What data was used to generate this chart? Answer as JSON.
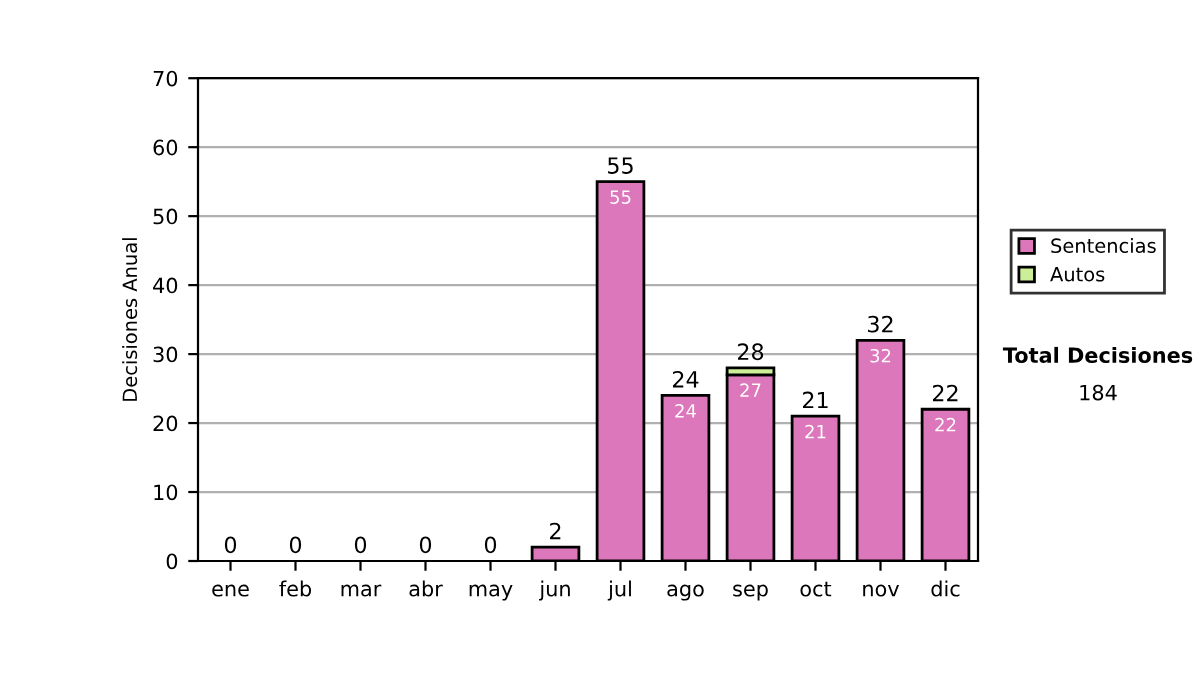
{
  "chart_data": {
    "type": "bar",
    "ylabel": "Decisiones Anual",
    "categories": [
      "ene",
      "feb",
      "mar",
      "abr",
      "may",
      "jun",
      "jul",
      "ago",
      "sep",
      "oct",
      "nov",
      "dic"
    ],
    "series": [
      {
        "name": "Sentencias",
        "color": "#dd77bb",
        "values": [
          0,
          0,
          0,
          0,
          0,
          2,
          55,
          24,
          27,
          21,
          32,
          22
        ],
        "value_labels": [
          null,
          null,
          null,
          null,
          null,
          null,
          "55",
          "24",
          "27",
          "21",
          "32",
          "22"
        ]
      },
      {
        "name": "Autos",
        "color": "#ccee99",
        "values": [
          0,
          0,
          0,
          0,
          0,
          0,
          0,
          0,
          1,
          0,
          0,
          0
        ]
      }
    ],
    "stacked": true,
    "totals": [
      "0",
      "0",
      "0",
      "0",
      "0",
      "2",
      "55",
      "24",
      "28",
      "21",
      "32",
      "22"
    ],
    "ylim": [
      0,
      70
    ],
    "yticks": [
      0,
      10,
      20,
      30,
      40,
      50,
      60,
      70
    ],
    "grid": "y",
    "legend": "right",
    "annotations": [
      "Total Decisiones",
      "184"
    ]
  }
}
